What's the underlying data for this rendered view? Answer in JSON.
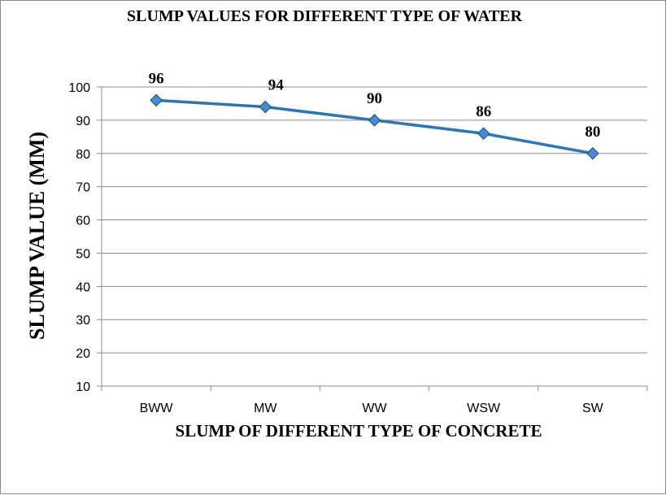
{
  "chart_data": {
    "type": "line",
    "title": "SLUMP VALUES FOR DIFFERENT TYPE OF WATER",
    "xlabel": "SLUMP OF DIFFERENT TYPE OF CONCRETE",
    "ylabel": "SLUMP VALUE  (MM)",
    "categories": [
      "BWW",
      "MW",
      "WW",
      "WSW",
      "SW"
    ],
    "series": [
      {
        "values": [
          96,
          94,
          90,
          86,
          80
        ],
        "color": "#2E75B6",
        "marker": "diamond"
      }
    ],
    "data_labels": [
      "96",
      "94",
      "90",
      "86",
      "80"
    ],
    "y_ticks": [
      "10",
      "20",
      "30",
      "40",
      "50",
      "60",
      "70",
      "80",
      "90",
      "100"
    ],
    "ylim": [
      10,
      100
    ],
    "grid": true,
    "legend": "none"
  }
}
